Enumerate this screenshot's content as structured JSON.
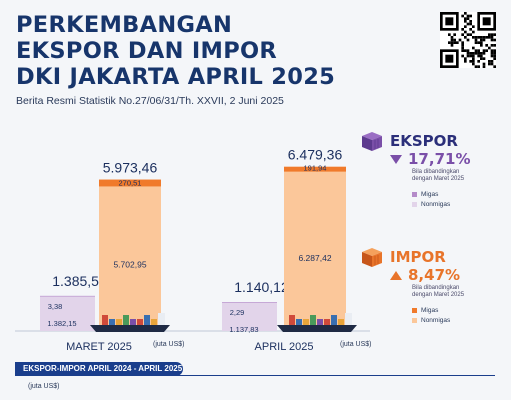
{
  "header": {
    "title_lines": [
      "PERKEMBANGAN",
      "EKSPOR DAN IMPOR",
      "DKI JAKARTA APRIL 2025"
    ],
    "subtitle": "Berita Resmi Statistik No.27/06/31/Th. XXVII, 2 Juni 2025"
  },
  "legend": {
    "ekspor": {
      "label": "EKSPOR",
      "change": "17,71%",
      "note": "Bila dibandingkan dengan Maret 2025",
      "direction": "down",
      "color": "#7a4fa8"
    },
    "impor": {
      "label": "IMPOR",
      "change": "8,47%",
      "note": "Bila dibandingkan dengan Maret 2025",
      "direction": "up",
      "color": "#e8742a"
    },
    "migas": "Migas",
    "nonmigas": "Nonmigas"
  },
  "colors": {
    "export_migas": "#b48bc9",
    "export_nonmigas": "#e2d4ea",
    "import_migas": "#f07a2b",
    "import_nonmigas": "#fbc79a"
  },
  "chart_data": {
    "type": "bar",
    "unit": "(juta US$)",
    "periods": [
      {
        "label": "MARET 2025",
        "ekspor": {
          "total": "1.385,53",
          "migas": "3,38",
          "nonmigas": "1.382,15",
          "total_value": 1385.53,
          "migas_value": 3.38,
          "nonmigas_value": 1382.15
        },
        "impor": {
          "total": "5.973,46",
          "migas": "270,51",
          "nonmigas": "5.702,95",
          "total_value": 5973.46,
          "migas_value": 270.51,
          "nonmigas_value": 5702.95
        }
      },
      {
        "label": "APRIL 2025",
        "ekspor": {
          "total": "1.140,12",
          "migas": "2,29",
          "nonmigas": "1.137,83",
          "total_value": 1140.12,
          "migas_value": 2.29,
          "nonmigas_value": 1137.83
        },
        "impor": {
          "total": "6.479,36",
          "migas": "191,94",
          "nonmigas": "6.287,42",
          "total_value": 6479.36,
          "migas_value": 191.94,
          "nonmigas_value": 6287.42
        }
      }
    ]
  },
  "bottom": {
    "band_label": "EKSPOR-IMPOR APRIL 2024 - APRIL 2025",
    "unit": "(juta US$)"
  }
}
